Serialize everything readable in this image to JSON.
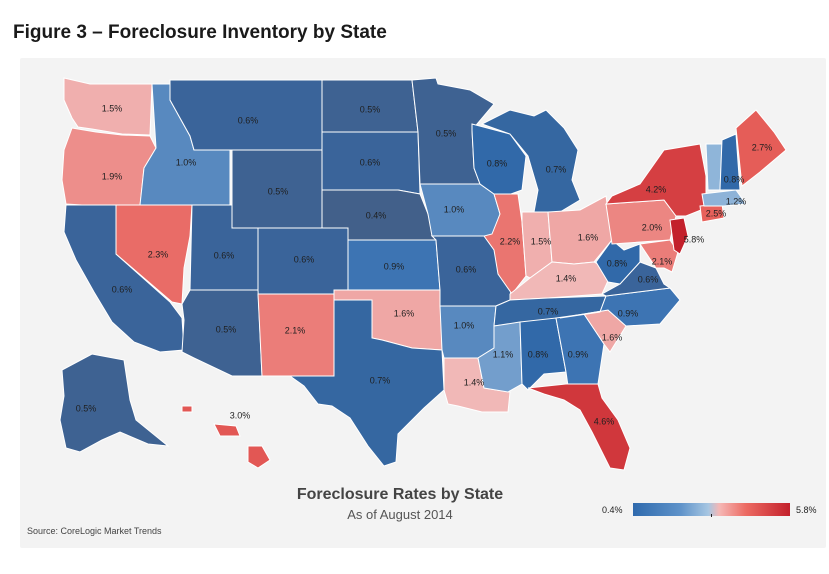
{
  "figure_title": "Figure 3 – Foreclosure Inventory by State",
  "map_title": "Foreclosure Rates by State",
  "map_subtitle": "As of August 2014",
  "source": "Source: CoreLogic Market Trends",
  "legend": {
    "min_label": "0.4%",
    "max_label": "5.8%",
    "min": 0.4,
    "max": 5.8
  },
  "colors": {
    "low": "#2f6aad",
    "mid": "#a9c8e4",
    "high": "#c3202b"
  },
  "states": [
    {
      "abbr": "WA",
      "label": "1.5%",
      "value": 1.5
    },
    {
      "abbr": "OR",
      "label": "1.9%",
      "value": 1.9
    },
    {
      "abbr": "CA",
      "label": "0.6%",
      "value": 0.6
    },
    {
      "abbr": "NV",
      "label": "2.3%",
      "value": 2.3
    },
    {
      "abbr": "ID",
      "label": "1.0%",
      "value": 1.0
    },
    {
      "abbr": "MT",
      "label": "0.6%",
      "value": 0.6
    },
    {
      "abbr": "WY",
      "label": "0.5%",
      "value": 0.5
    },
    {
      "abbr": "UT",
      "label": "0.6%",
      "value": 0.6
    },
    {
      "abbr": "CO",
      "label": "0.6%",
      "value": 0.6
    },
    {
      "abbr": "AZ",
      "label": "0.5%",
      "value": 0.5
    },
    {
      "abbr": "NM",
      "label": "2.1%",
      "value": 2.1
    },
    {
      "abbr": "ND",
      "label": "0.5%",
      "value": 0.5
    },
    {
      "abbr": "SD",
      "label": "0.6%",
      "value": 0.6
    },
    {
      "abbr": "NE",
      "label": "0.4%",
      "value": 0.4
    },
    {
      "abbr": "KS",
      "label": "0.9%",
      "value": 0.9
    },
    {
      "abbr": "OK",
      "label": "1.6%",
      "value": 1.6
    },
    {
      "abbr": "TX",
      "label": "0.7%",
      "value": 0.7
    },
    {
      "abbr": "MN",
      "label": "0.5%",
      "value": 0.5
    },
    {
      "abbr": "IA",
      "label": "1.0%",
      "value": 1.0
    },
    {
      "abbr": "MO",
      "label": "0.6%",
      "value": 0.6
    },
    {
      "abbr": "AR",
      "label": "1.0%",
      "value": 1.0
    },
    {
      "abbr": "LA",
      "label": "1.4%",
      "value": 1.4
    },
    {
      "abbr": "WI",
      "label": "0.8%",
      "value": 0.8
    },
    {
      "abbr": "IL",
      "label": "2.2%",
      "value": 2.2
    },
    {
      "abbr": "MI",
      "label": "0.7%",
      "value": 0.7
    },
    {
      "abbr": "IN",
      "label": "1.5%",
      "value": 1.5
    },
    {
      "abbr": "OH",
      "label": "1.6%",
      "value": 1.6
    },
    {
      "abbr": "KY",
      "label": "1.4%",
      "value": 1.4
    },
    {
      "abbr": "TN",
      "label": "0.7%",
      "value": 0.7
    },
    {
      "abbr": "MS",
      "label": "1.1%",
      "value": 1.1
    },
    {
      "abbr": "AL",
      "label": "0.8%",
      "value": 0.8
    },
    {
      "abbr": "GA",
      "label": "0.9%",
      "value": 0.9
    },
    {
      "abbr": "FL",
      "label": "4.6%",
      "value": 4.6
    },
    {
      "abbr": "SC",
      "label": "1.6%",
      "value": 1.6
    },
    {
      "abbr": "NC",
      "label": "0.9%",
      "value": 0.9
    },
    {
      "abbr": "VA",
      "label": "0.6%",
      "value": 0.6
    },
    {
      "abbr": "WV",
      "label": "0.8%",
      "value": 0.8
    },
    {
      "abbr": "PA",
      "label": "2.0%",
      "value": 2.0
    },
    {
      "abbr": "MD",
      "label": "2.1%",
      "value": 2.1
    },
    {
      "abbr": "NJ",
      "label": "5.8%",
      "value": 5.8
    },
    {
      "abbr": "NY",
      "label": "4.2%",
      "value": 4.2
    },
    {
      "abbr": "CT",
      "label": "2.5%",
      "value": 2.5
    },
    {
      "abbr": "MA",
      "label": "1.2%",
      "value": 1.2
    },
    {
      "abbr": "VT",
      "label": "",
      "value": null
    },
    {
      "abbr": "NH",
      "label": "0.8%",
      "value": 0.8
    },
    {
      "abbr": "ME",
      "label": "2.7%",
      "value": 2.7
    },
    {
      "abbr": "AK",
      "label": "0.5%",
      "value": 0.5
    },
    {
      "abbr": "HI",
      "label": "3.0%",
      "value": 3.0
    }
  ]
}
